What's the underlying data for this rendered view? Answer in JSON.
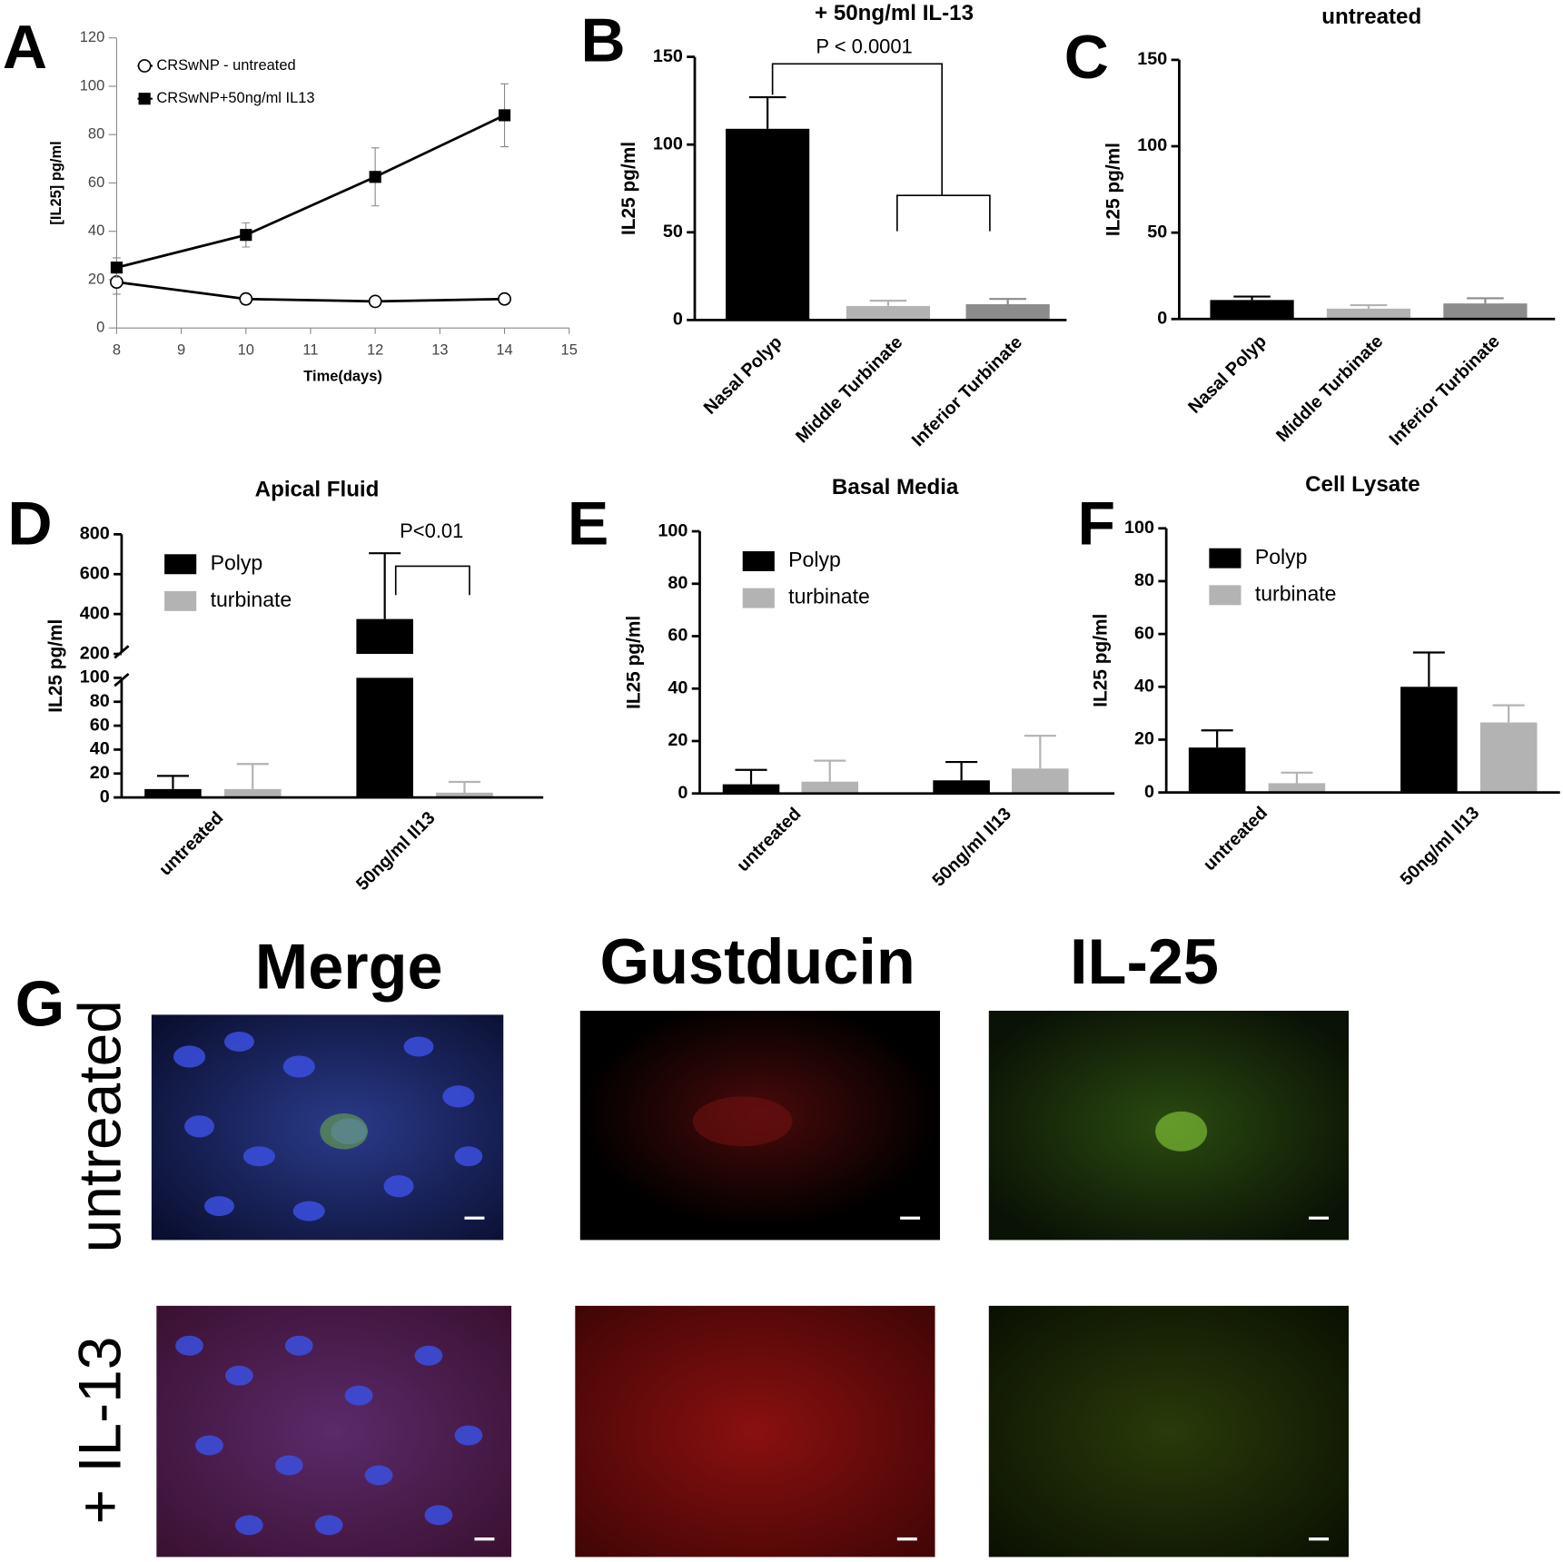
{
  "chart_data": [
    {
      "type": "line",
      "panel": "A",
      "xlabel": "Time(days)",
      "ylabel": "[IL25] pg/ml",
      "xlim": [
        8,
        15
      ],
      "xticks": [
        8,
        9,
        10,
        11,
        12,
        13,
        14,
        15
      ],
      "ylim": [
        0,
        120
      ],
      "yticks": [
        0,
        20,
        40,
        60,
        80,
        100,
        120
      ],
      "series": [
        {
          "name": "CRSwNP - untreated",
          "color": "#000000",
          "marker": "circle",
          "x": [
            8,
            10,
            12,
            14
          ],
          "values": [
            19,
            12,
            11,
            12
          ],
          "errors": [
            5,
            1,
            1,
            1
          ]
        },
        {
          "name": "CRSwNP+50ng/ml IL13",
          "color": "#000000",
          "marker": "square",
          "x": [
            8,
            10,
            12,
            14
          ],
          "values": [
            25,
            38.5,
            62.5,
            88
          ],
          "errors": [
            4,
            5,
            12,
            13
          ]
        }
      ]
    },
    {
      "type": "bar",
      "panel": "B",
      "title": "+ 50ng/ml IL-13",
      "ylabel": "IL25 pg/ml",
      "annotation": "P < 0.0001",
      "categories": [
        "Nasal Polyp",
        "Middle Turbinate",
        "Inferior Turbinate"
      ],
      "values": [
        109,
        8,
        9
      ],
      "errors": [
        18,
        3,
        3
      ],
      "colors": [
        "#000000",
        "#b3b3b3",
        "#8c8c8c"
      ],
      "ylim": [
        0,
        150
      ],
      "yticks": [
        0,
        50,
        100,
        150
      ]
    },
    {
      "type": "bar",
      "panel": "C",
      "title": "untreated",
      "ylabel": "IL25 pg/ml",
      "categories": [
        "Nasal Polyp",
        "Middle Turbinate",
        "Inferior Turbinate"
      ],
      "values": [
        11,
        6,
        9
      ],
      "errors": [
        2,
        2,
        3
      ],
      "colors": [
        "#000000",
        "#b3b3b3",
        "#8c8c8c"
      ],
      "ylim": [
        0,
        150
      ],
      "yticks": [
        0,
        50,
        100,
        150
      ]
    },
    {
      "type": "grouped-bar",
      "panel": "D",
      "title": "Apical Fluid",
      "ylabel": "IL25 pg/ml",
      "annotation": "P<0.01",
      "categories": [
        "untreated",
        "50ng/ml Il13"
      ],
      "series": [
        {
          "name": "Polyp",
          "color": "#000000",
          "values": [
            7,
            375
          ],
          "errors": [
            11,
            330
          ]
        },
        {
          "name": "turbinate",
          "color": "#b3b3b3",
          "values": [
            7,
            4
          ],
          "errors": [
            21,
            9
          ]
        }
      ],
      "ylim": [
        0,
        800
      ],
      "axis_break": [
        100,
        200
      ],
      "yticks": [
        0,
        20,
        40,
        60,
        80,
        100,
        200,
        400,
        600,
        800
      ]
    },
    {
      "type": "grouped-bar",
      "panel": "E",
      "title": "Basal Media",
      "ylabel": "IL25 pg/ml",
      "categories": [
        "untreated",
        "50ng/ml Il13"
      ],
      "series": [
        {
          "name": "Polyp",
          "color": "#000000",
          "values": [
            3.5,
            5
          ],
          "errors": [
            5.5,
            7
          ]
        },
        {
          "name": "turbinate",
          "color": "#b3b3b3",
          "values": [
            4.5,
            9.5
          ],
          "errors": [
            8,
            12.5
          ]
        }
      ],
      "ylim": [
        0,
        100
      ],
      "yticks": [
        0,
        20,
        40,
        60,
        80,
        100
      ]
    },
    {
      "type": "grouped-bar",
      "panel": "F",
      "title": "Cell  Lysate",
      "ylabel": "IL25 pg/ml",
      "categories": [
        "untreated",
        "50ng/ml Il13"
      ],
      "series": [
        {
          "name": "Polyp",
          "color": "#000000",
          "values": [
            17,
            40
          ],
          "errors": [
            6.5,
            13
          ]
        },
        {
          "name": "turbinate",
          "color": "#b3b3b3",
          "values": [
            3.5,
            26.5
          ],
          "errors": [
            4,
            6.5
          ]
        }
      ],
      "ylim": [
        0,
        100
      ],
      "yticks": [
        0,
        20,
        40,
        60,
        80,
        100
      ]
    }
  ],
  "panel_g": {
    "panel": "G",
    "columns": [
      "Merge",
      "Gustducin",
      "IL-25"
    ],
    "rows": [
      "untreated",
      "+ IL-13"
    ]
  }
}
